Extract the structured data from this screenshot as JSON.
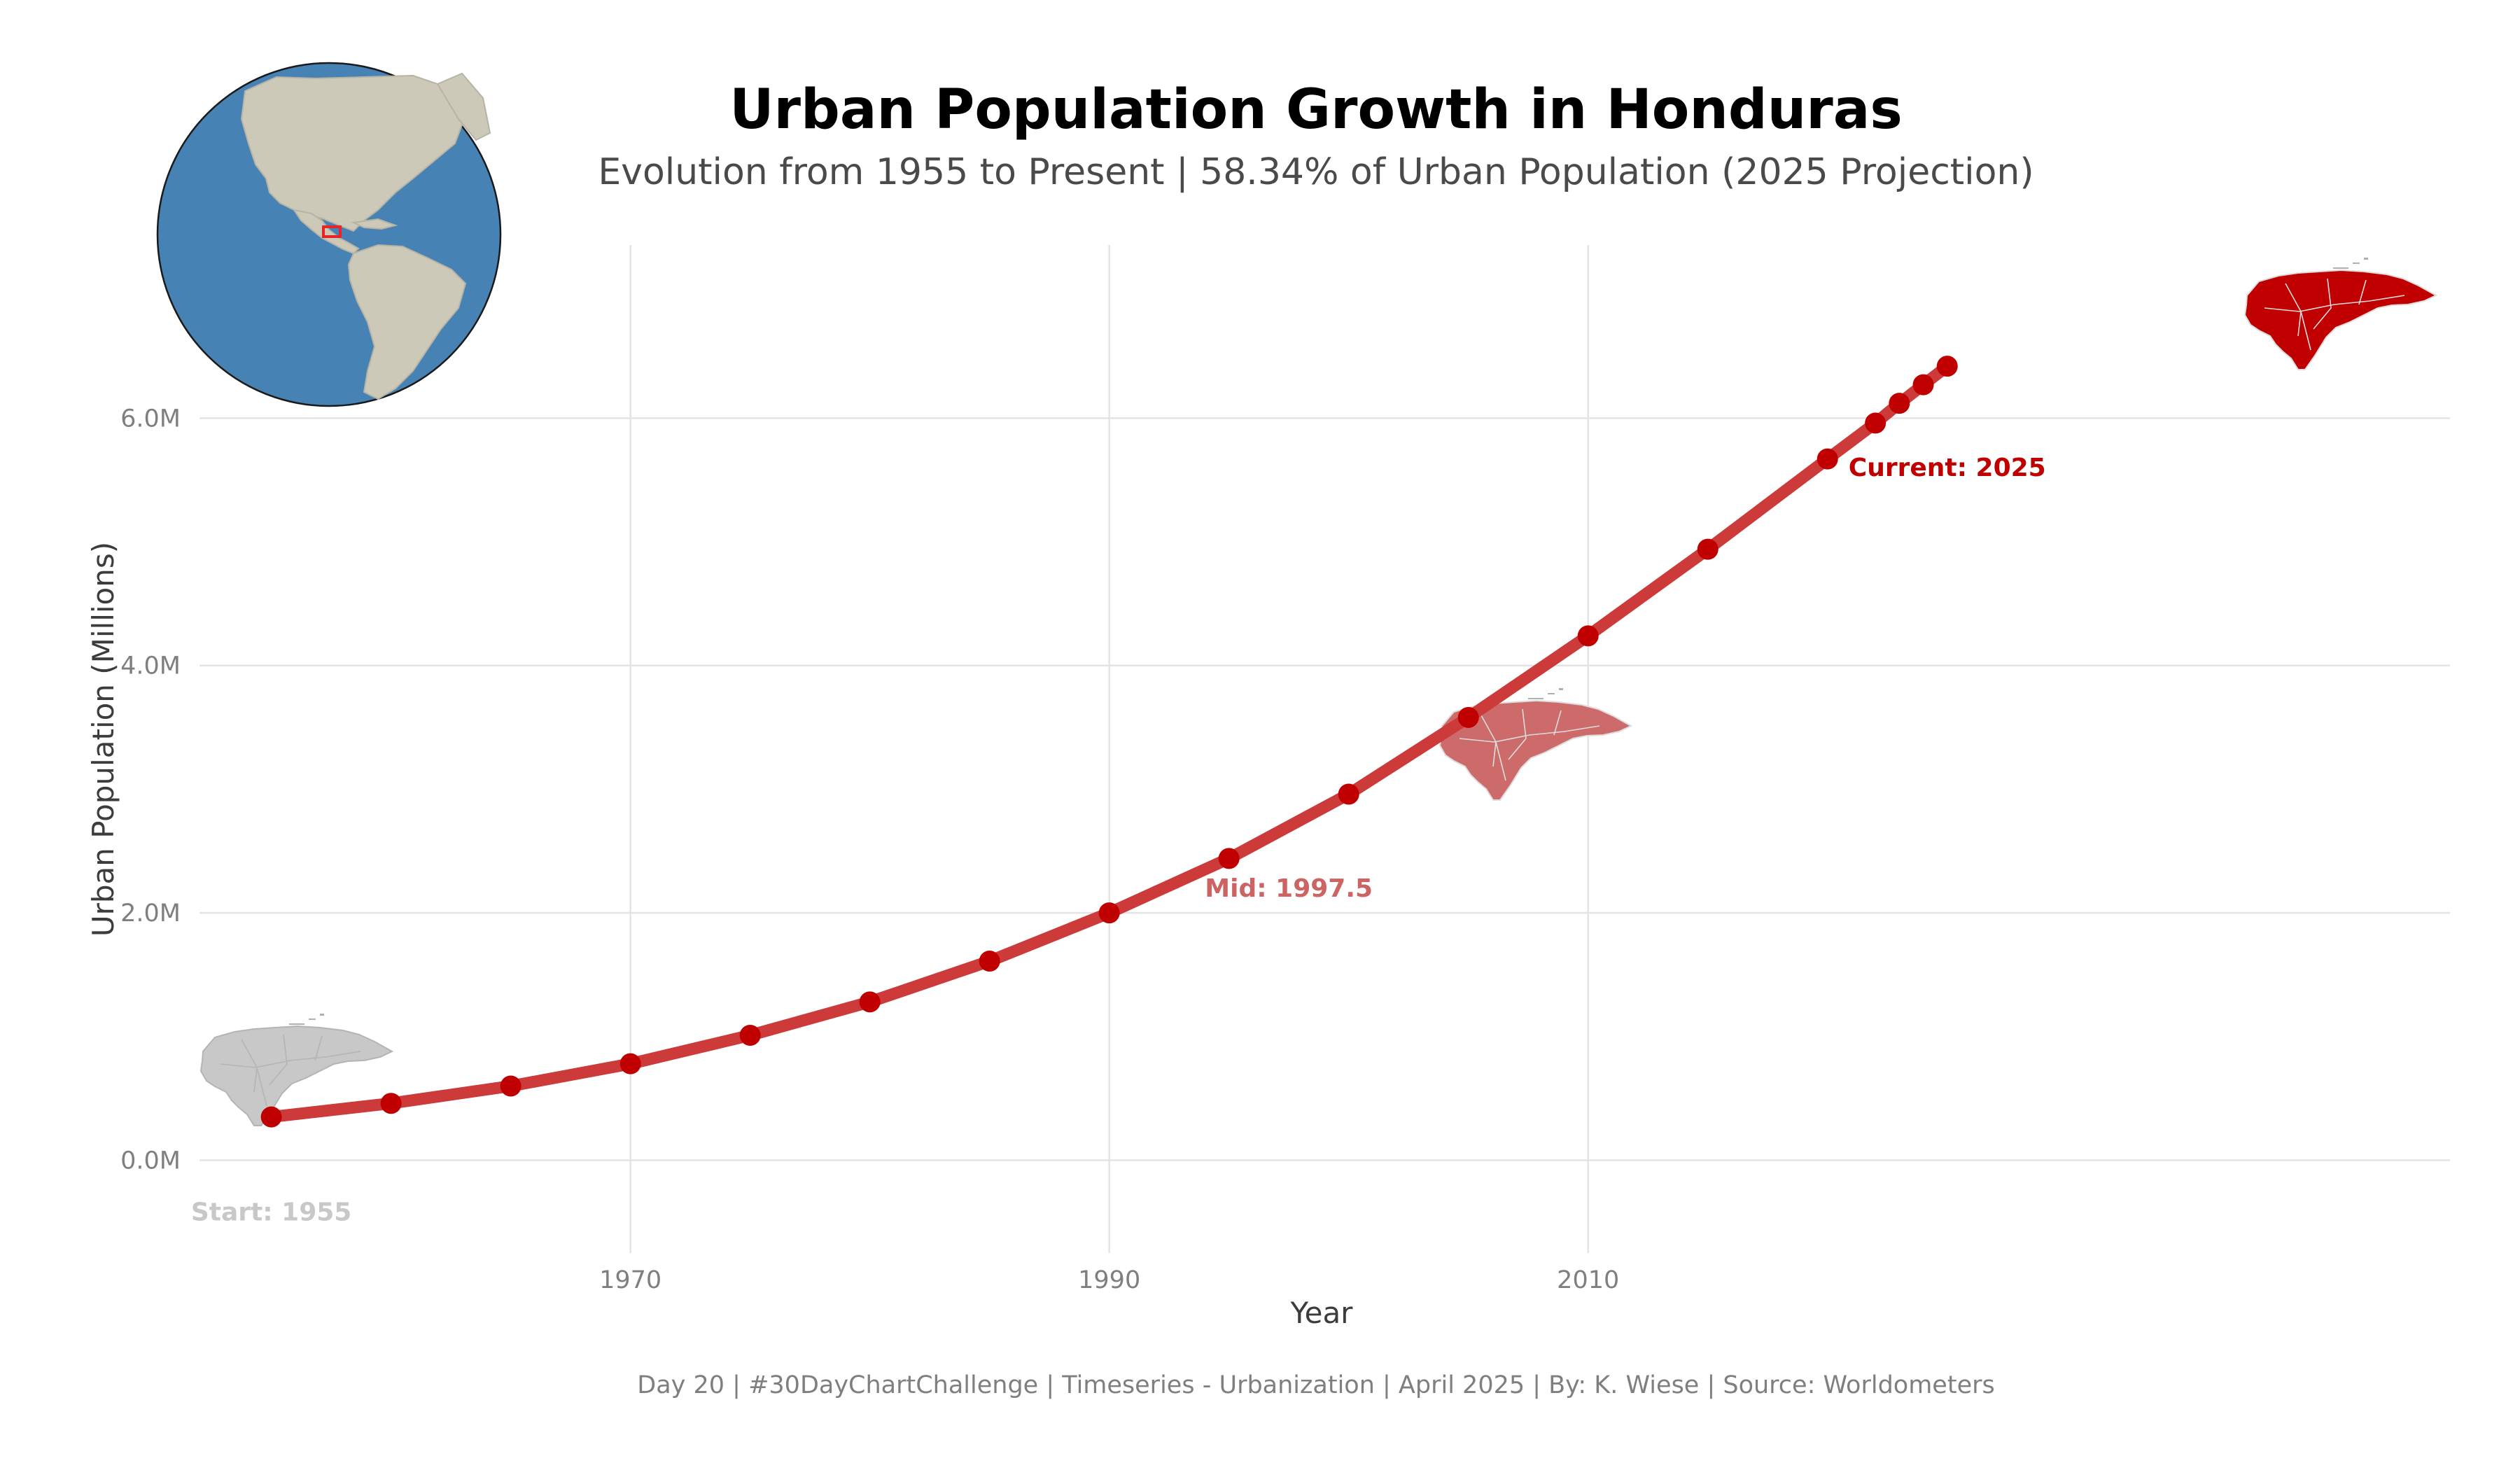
{
  "chart_data": {
    "type": "line",
    "title": "Urban Population Growth in Honduras",
    "subtitle": "Evolution from 1955 to Present | 58.34% of Urban Population (2025 Projection)",
    "xlabel": "Year",
    "ylabel": "Urban Population (Millions)",
    "xlim": [
      1952,
      2046
    ],
    "ylim": [
      -0.75,
      7.4
    ],
    "x_ticks": [
      1970,
      1990,
      2010
    ],
    "y_ticks": [
      0,
      2,
      4,
      6
    ],
    "x_tick_labels": [
      "1970",
      "1990",
      "2010"
    ],
    "y_tick_labels": [
      "0.0M",
      "2.0M",
      "4.0M",
      "6.0M"
    ],
    "grid": true,
    "legend": "none",
    "series": [
      {
        "x": [
          1955,
          1960,
          1965,
          1970,
          1975,
          1980,
          1985,
          1990,
          1995,
          2000,
          2005,
          2010,
          2015,
          2020,
          2022,
          2023,
          2024,
          2025
        ],
        "y": [
          0.35,
          0.46,
          0.6,
          0.78,
          1.01,
          1.28,
          1.61,
          2.0,
          2.44,
          2.96,
          3.58,
          4.24,
          4.94,
          5.67,
          5.96,
          6.12,
          6.27,
          6.42
        ]
      }
    ],
    "annotations": [
      {
        "label": "Start: 1955",
        "x": 1955.0,
        "y": -0.42,
        "color": "#c8c8c8"
      },
      {
        "label": "Mid: 1997.5",
        "x": 1997.5,
        "y": 2.2,
        "color": "#cd6464"
      },
      {
        "label": "Current: 2025",
        "x": 2025.0,
        "y": 5.6,
        "color": "#c00000"
      }
    ],
    "map_icons": [
      {
        "name": "honduras-start-map",
        "fill": "#c8c8c8",
        "stroke": "#b4b4b4"
      },
      {
        "name": "honduras-mid-map",
        "fill": "#cd6b6b",
        "stroke": "#dddddd"
      },
      {
        "name": "honduras-current-map",
        "fill": "#c00000",
        "stroke": "#dddddd"
      }
    ],
    "colors": {
      "line": "#cd3a3a",
      "points": "#c00000",
      "ocean": "#4682b4",
      "land": "#ccc9b8",
      "highlight": "#e8242b"
    }
  },
  "caption": "Day 20 | #30DayChartChallenge | Timeseries - Urbanization | April 2025 | By: K. Wiese | Source: Worldometers"
}
